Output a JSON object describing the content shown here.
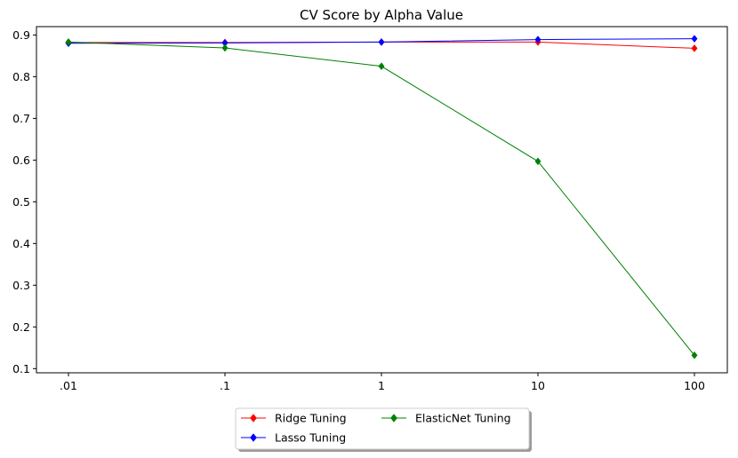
{
  "chart_data": {
    "type": "line",
    "title": "CV Score by Alpha Value",
    "xlabel": "",
    "ylabel": "",
    "categories": [
      ".01",
      ".1",
      "1",
      "10",
      "100"
    ],
    "ylim": [
      0.09,
      0.92
    ],
    "yticks": [
      "0.1",
      "0.2",
      "0.3",
      "0.4",
      "0.5",
      "0.6",
      "0.7",
      "0.8",
      "0.9"
    ],
    "grid": false,
    "legend_position": "bottom-center",
    "series": [
      {
        "name": "Ridge Tuning",
        "color": "#ff0000",
        "marker": "diamond",
        "values": [
          0.882,
          0.882,
          0.883,
          0.883,
          0.868
        ]
      },
      {
        "name": "Lasso Tuning",
        "color": "#0000ff",
        "marker": "diamond",
        "values": [
          0.88,
          0.881,
          0.883,
          0.889,
          0.891
        ]
      },
      {
        "name": "ElasticNet Tuning",
        "color": "#008000",
        "marker": "diamond",
        "values": [
          0.883,
          0.869,
          0.825,
          0.597,
          0.132
        ]
      }
    ]
  }
}
